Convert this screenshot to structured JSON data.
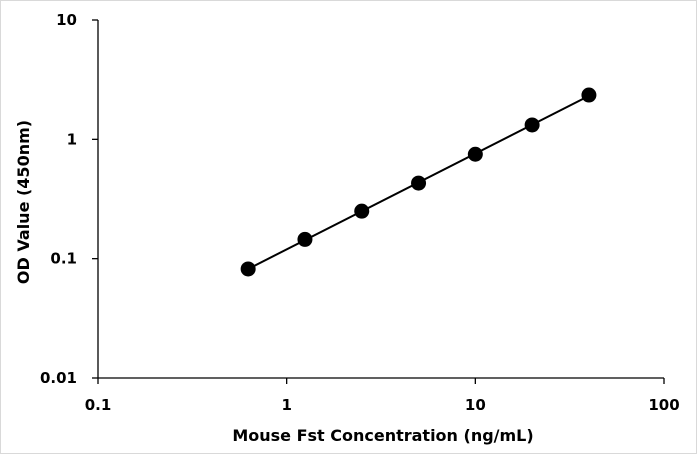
{
  "chart_data": {
    "type": "scatter",
    "title": "",
    "xlabel": "Mouse Fst Concentration (ng/mL)",
    "ylabel": "OD Value (450nm)",
    "x_scale": "log",
    "y_scale": "log",
    "xlim": [
      0.1,
      100
    ],
    "ylim": [
      0.01,
      10
    ],
    "x_ticks": [
      {
        "value": 0.1,
        "label": "0.1"
      },
      {
        "value": 1,
        "label": "1"
      },
      {
        "value": 10,
        "label": "10"
      },
      {
        "value": 100,
        "label": "100"
      }
    ],
    "y_ticks": [
      {
        "value": 0.01,
        "label": "0.01"
      },
      {
        "value": 0.1,
        "label": "0.1"
      },
      {
        "value": 1,
        "label": "1"
      },
      {
        "value": 10,
        "label": "10"
      }
    ],
    "grid": false,
    "legend": "none",
    "series": [
      {
        "x": [
          0.625,
          1.25,
          2.5,
          5,
          10,
          20,
          40
        ],
        "y": [
          0.082,
          0.145,
          0.25,
          0.43,
          0.75,
          1.32,
          2.35
        ],
        "marker": "circle",
        "color": "#000000",
        "fit_line": true
      }
    ]
  }
}
